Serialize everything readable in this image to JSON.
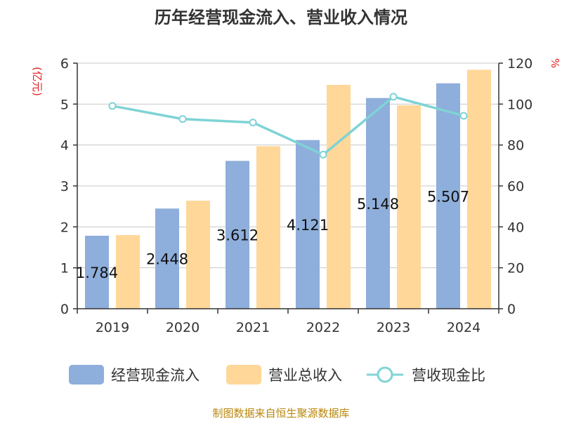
{
  "chart_data": {
    "type": "bar",
    "title": "历年经营现金流入、营业收入情况",
    "categories": [
      "2019",
      "2020",
      "2021",
      "2022",
      "2023",
      "2024"
    ],
    "series": [
      {
        "name": "经营现金流入",
        "type": "bar",
        "axis": "left",
        "color": "#8eaedb",
        "values": [
          1.784,
          2.448,
          3.612,
          4.121,
          5.148,
          5.507
        ],
        "labels_shown": true
      },
      {
        "name": "营业总收入",
        "type": "bar",
        "axis": "left",
        "color": "#ffd799",
        "values": [
          1.8,
          2.64,
          3.97,
          5.47,
          4.97,
          5.84
        ],
        "labels_shown": false
      },
      {
        "name": "营收现金比",
        "type": "line",
        "axis": "right",
        "color": "#7fd3d5",
        "values": [
          99.1,
          92.7,
          91.0,
          75.3,
          103.6,
          94.3
        ],
        "labels_shown": false
      }
    ],
    "y_left": {
      "unit": "(亿元)",
      "ylim": [
        0,
        6
      ],
      "ticks": [
        0,
        1,
        2,
        3,
        4,
        5,
        6
      ]
    },
    "y_right": {
      "unit": "%",
      "ylim": [
        0,
        120
      ],
      "ticks": [
        0,
        20,
        40,
        60,
        80,
        100,
        120
      ]
    },
    "grid": true,
    "legend_position": "bottom"
  },
  "source": "制图数据来自恒生聚源数据库"
}
